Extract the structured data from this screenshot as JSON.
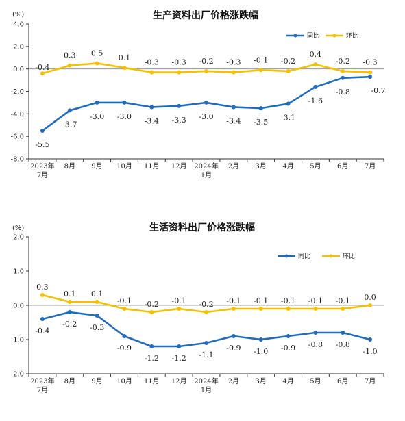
{
  "colors": {
    "yoy": "#1f6bbf",
    "mom": "#f5c000",
    "axis": "#333333"
  },
  "chart_data": [
    {
      "type": "line",
      "title": "生产资料出厂价格涨跌幅",
      "unit": "(%)",
      "categories": [
        [
          "2023年",
          "7月"
        ],
        [
          "8月"
        ],
        [
          "9月"
        ],
        [
          "10月"
        ],
        [
          "11月"
        ],
        [
          "12月"
        ],
        [
          "2024年",
          "1月"
        ],
        [
          "2月"
        ],
        [
          "3月"
        ],
        [
          "4月"
        ],
        [
          "5月"
        ],
        [
          "6月"
        ],
        [
          "7月"
        ]
      ],
      "yticks": [
        "4.0",
        "2.0",
        "0.0",
        "-2.0",
        "-4.0",
        "-6.0",
        "-8.0"
      ],
      "ylim": [
        -8,
        4
      ],
      "legend_position": "top-right",
      "series": [
        {
          "name": "同比",
          "color_key": "yoy",
          "values": [
            -5.5,
            -3.7,
            -3.0,
            -3.0,
            -3.4,
            -3.3,
            -3.0,
            -3.4,
            -3.5,
            -3.1,
            -1.6,
            -0.8,
            -0.7
          ],
          "labels": [
            "-5.5",
            "-3.7",
            "-3.0",
            "-3.0",
            "-3.4",
            "-3.3",
            "-3.0",
            "-3.4",
            "-3.5",
            "-3.1",
            "-1.6",
            "-0.8",
            "-0.7"
          ]
        },
        {
          "name": "环比",
          "color_key": "mom",
          "values": [
            -0.4,
            0.3,
            0.5,
            0.1,
            -0.3,
            -0.3,
            -0.2,
            -0.3,
            -0.1,
            -0.2,
            0.4,
            -0.2,
            -0.3
          ],
          "labels": [
            "-0.4",
            "0.3",
            "0.5",
            "0.1",
            "-0.3",
            "-0.3",
            "-0.2",
            "-0.3",
            "-0.1",
            "-0.2",
            "0.4",
            "-0.2",
            "-0.3"
          ]
        }
      ]
    },
    {
      "type": "line",
      "title": "生活资料出厂价格涨跌幅",
      "unit": "(%)",
      "categories": [
        [
          "2023年",
          "7月"
        ],
        [
          "8月"
        ],
        [
          "9月"
        ],
        [
          "10月"
        ],
        [
          "11月"
        ],
        [
          "12月"
        ],
        [
          "2024年",
          "1月"
        ],
        [
          "2月"
        ],
        [
          "3月"
        ],
        [
          "4月"
        ],
        [
          "5月"
        ],
        [
          "6月"
        ],
        [
          "7月"
        ]
      ],
      "yticks": [
        "2.0",
        "1.0",
        "0.0",
        "-1.0",
        "-2.0"
      ],
      "ylim": [
        -2,
        2
      ],
      "legend_position": "top-right",
      "series": [
        {
          "name": "同比",
          "color_key": "yoy",
          "values": [
            -0.4,
            -0.2,
            -0.3,
            -0.9,
            -1.2,
            -1.2,
            -1.1,
            -0.9,
            -1.0,
            -0.9,
            -0.8,
            -0.8,
            -1.0
          ],
          "labels": [
            "-0.4",
            "-0.2",
            "-0.3",
            "-0.9",
            "-1.2",
            "-1.2",
            "-1.1",
            "-0.9",
            "-1.0",
            "-0.9",
            "-0.8",
            "-0.8",
            "-1.0"
          ]
        },
        {
          "name": "环比",
          "color_key": "mom",
          "values": [
            0.3,
            0.1,
            0.1,
            -0.1,
            -0.2,
            -0.1,
            -0.2,
            -0.1,
            -0.1,
            -0.1,
            -0.1,
            -0.1,
            0.0
          ],
          "labels": [
            "0.3",
            "0.1",
            "0.1",
            "-0.1",
            "-0.2",
            "-0.1",
            "-0.2",
            "-0.1",
            "-0.1",
            "-0.1",
            "-0.1",
            "-0.1",
            "0.0"
          ]
        }
      ]
    }
  ]
}
